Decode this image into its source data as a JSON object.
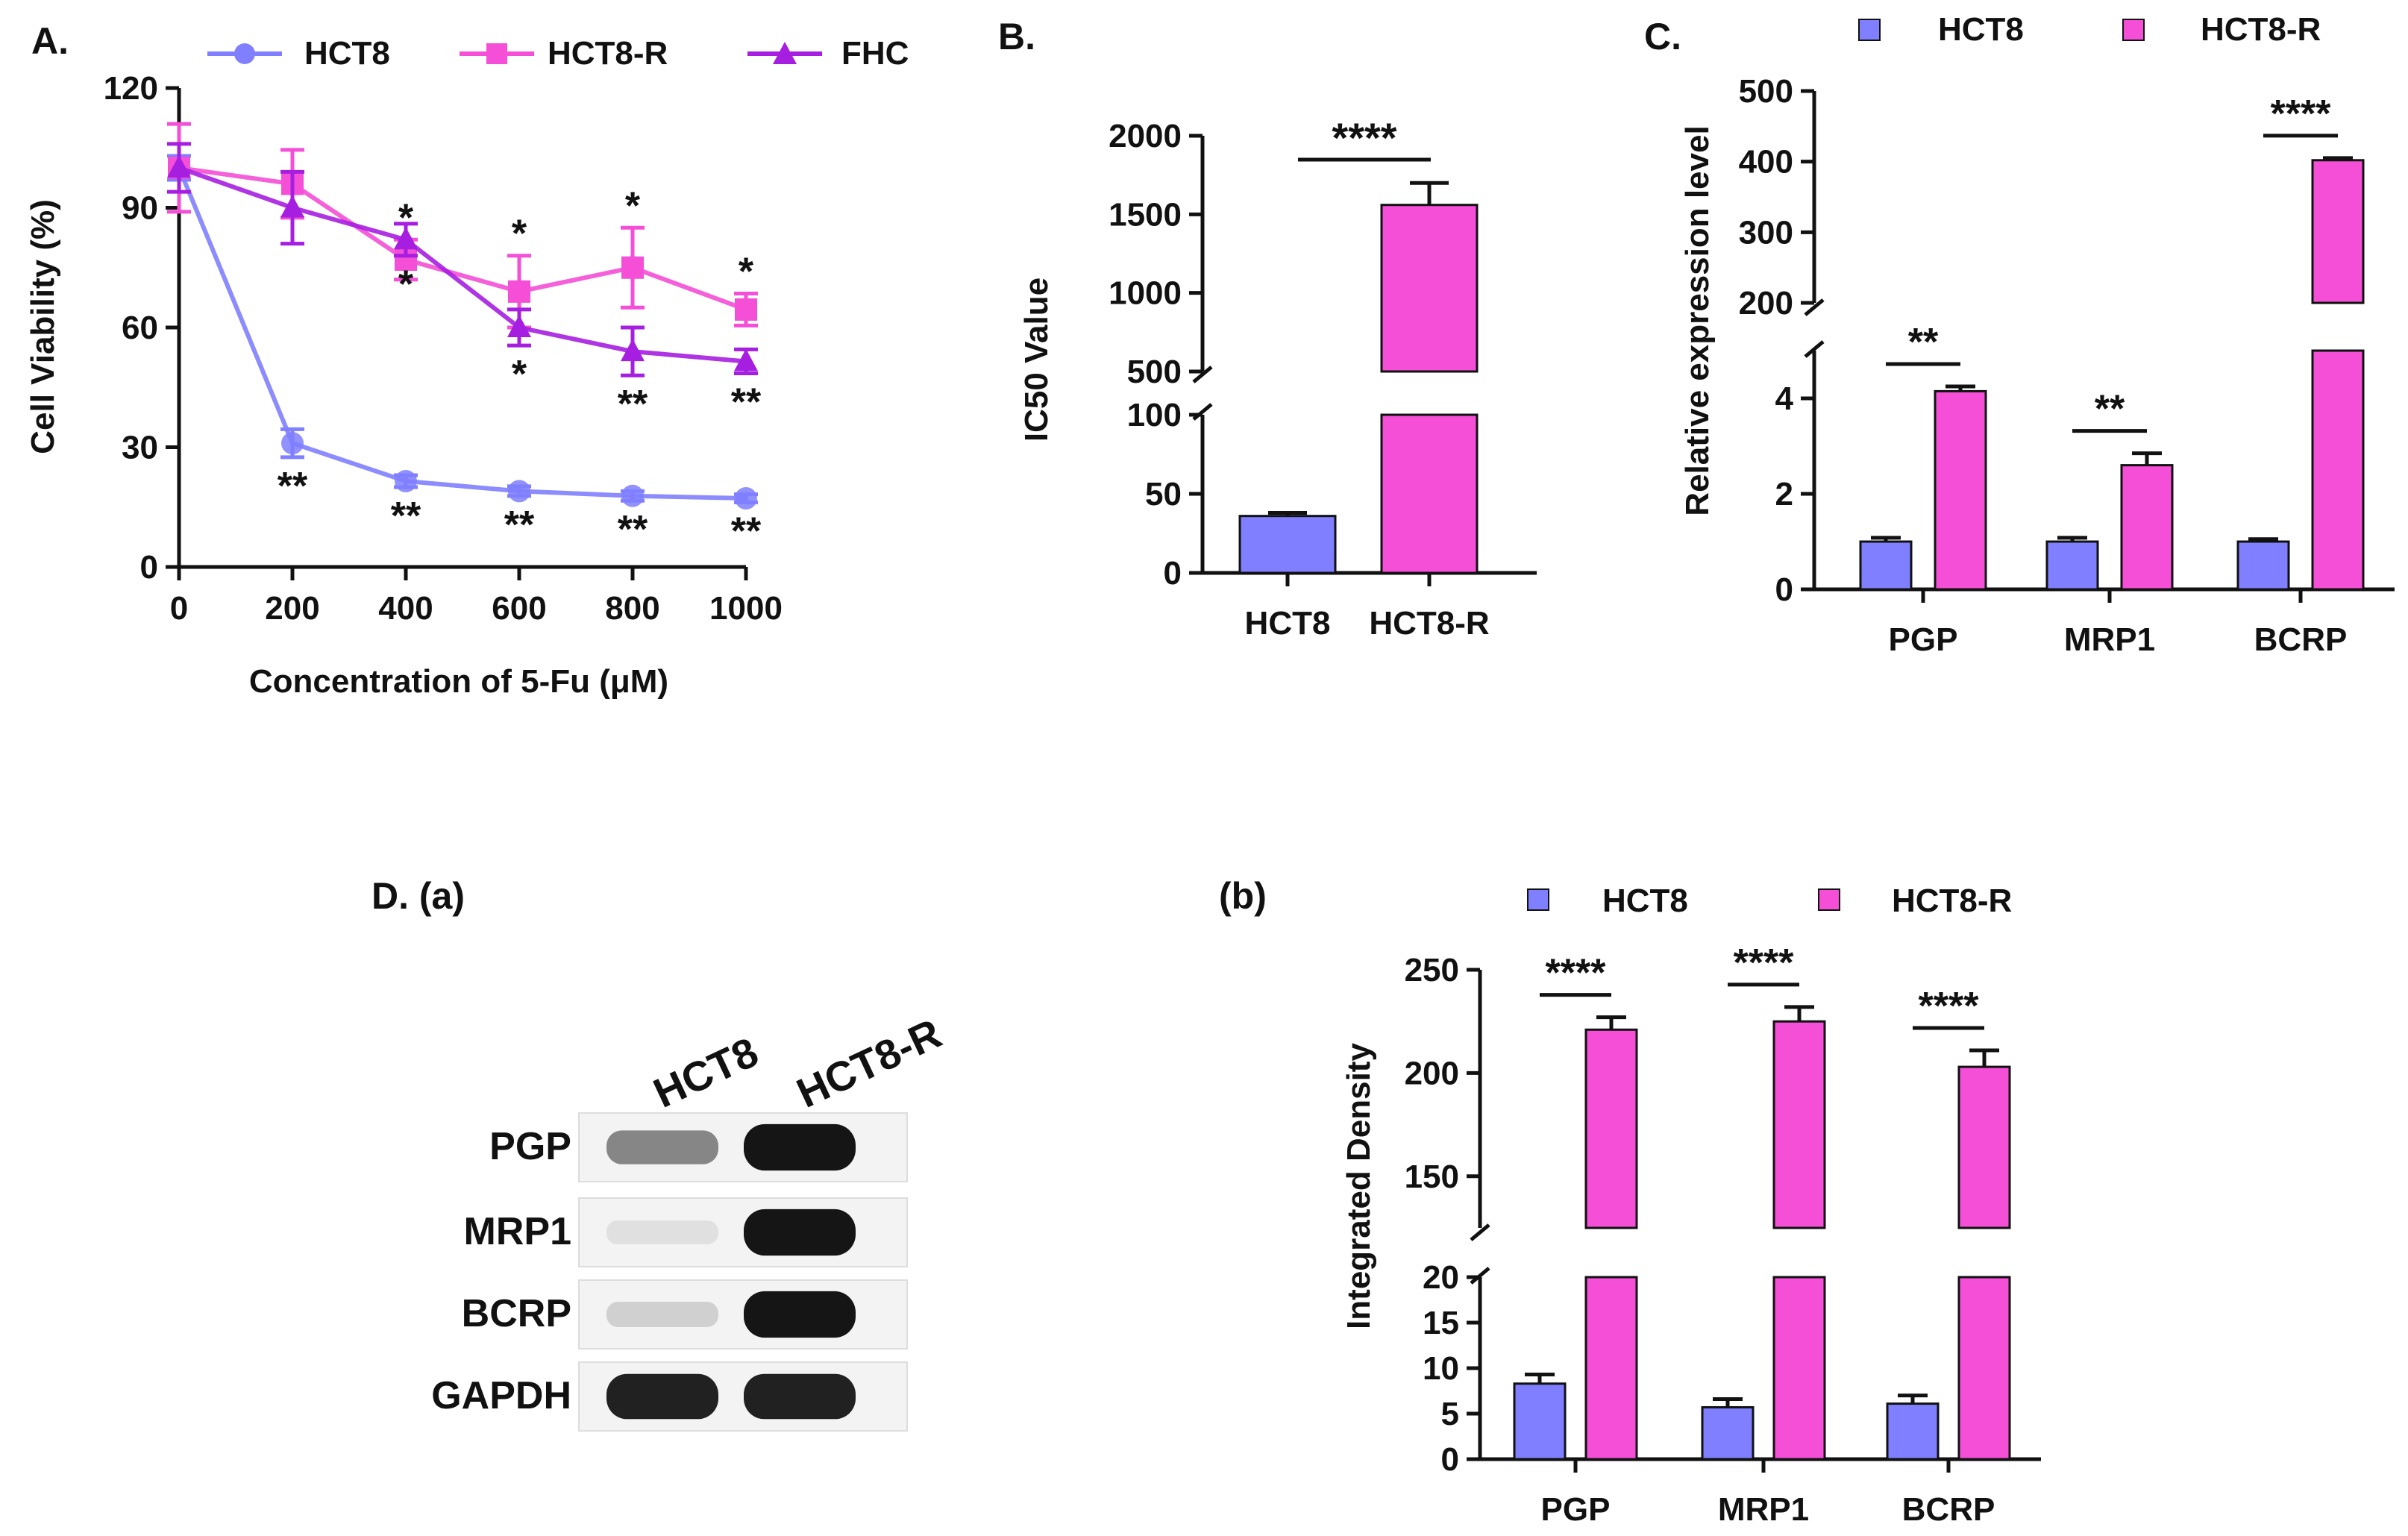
{
  "colors": {
    "HCT8": "#7f7fff",
    "HCT8-R": "#f44fd6",
    "FHC": "#a61ee0",
    "axis": "#111111"
  },
  "panelA": {
    "label": "A.",
    "xlabel": "Concentration of 5-Fu (μM)",
    "ylabel": "Cell Viability (%)",
    "legend": [
      "HCT8",
      "HCT8-R",
      "FHC"
    ]
  },
  "panelB": {
    "label": "B.",
    "ylabel": "IC50 Value",
    "sig": "****"
  },
  "panelC": {
    "label": "C.",
    "ylabel": "Relative expression level",
    "legend": [
      "HCT8",
      "HCT8-R"
    ]
  },
  "panelD": {
    "label": "D. (a)",
    "lanes": [
      "HCT8",
      "HCT8-R"
    ],
    "rows": [
      "PGP",
      "MRP1",
      "BCRP",
      "GAPDH"
    ],
    "band_intensity": {
      "HCT8": [
        0.45,
        0.05,
        0.12,
        0.9
      ],
      "HCT8-R": [
        0.95,
        0.95,
        0.95,
        0.9
      ]
    }
  },
  "panelDb": {
    "label": "(b)",
    "ylabel": "Integrated Density",
    "legend": [
      "HCT8",
      "HCT8-R"
    ]
  },
  "chart_data": [
    {
      "id": "A",
      "type": "line",
      "x": [
        0,
        200,
        400,
        600,
        800,
        1000
      ],
      "xticks": [
        "0",
        "200",
        "400",
        "600",
        "800",
        "1000"
      ],
      "xlim": [
        0,
        1000
      ],
      "ylim": [
        0,
        120
      ],
      "yticks": [
        "0",
        "30",
        "60",
        "90",
        "120"
      ],
      "xlabel": "Concentration of 5-Fu (μM)",
      "ylabel": "Cell Viability (%)",
      "legend_position": "top",
      "series": [
        {
          "name": "HCT8",
          "marker": "circle",
          "values": [
            100,
            31,
            21.5,
            19,
            17.8,
            17.2
          ],
          "errors": [
            3,
            3.5,
            1.5,
            1.2,
            1.2,
            1
          ],
          "sig": [
            "",
            "**",
            "**",
            "**",
            "**",
            "**"
          ],
          "sig_pos": "below"
        },
        {
          "name": "HCT8-R",
          "marker": "square",
          "values": [
            100,
            96,
            77,
            69,
            75,
            64.5
          ],
          "errors": [
            11,
            8.5,
            5,
            9,
            10,
            4
          ],
          "sig": [
            "",
            "",
            "*",
            "*",
            "*",
            "*"
          ],
          "sig_pos": "above"
        },
        {
          "name": "FHC",
          "marker": "triangle",
          "values": [
            100,
            90,
            82,
            60,
            54,
            51.5
          ],
          "errors": [
            6,
            9,
            4,
            4.5,
            6,
            3
          ],
          "sig": [
            "",
            "",
            "*",
            "*",
            "**",
            "**"
          ],
          "sig_pos": "below"
        }
      ]
    },
    {
      "id": "B",
      "type": "bar",
      "categories": [
        "HCT8",
        "HCT8-R"
      ],
      "values": [
        36,
        1560
      ],
      "errors": [
        2,
        140
      ],
      "ylabel": "IC50 Value",
      "ylim": [
        0,
        2000
      ],
      "axis_break": [
        100,
        500
      ],
      "yticks_low": [
        "0",
        "50",
        "100"
      ],
      "yticks_high": [
        "500",
        "1000",
        "1500",
        "2000"
      ],
      "annotations": [
        {
          "text": "****",
          "between": [
            "HCT8",
            "HCT8-R"
          ]
        }
      ]
    },
    {
      "id": "C",
      "type": "bar",
      "categories": [
        "PGP",
        "MRP1",
        "BCRP"
      ],
      "ylabel": "Relative expression level",
      "ylim": [
        0,
        500
      ],
      "axis_break": [
        5,
        200
      ],
      "yticks_low": [
        "0",
        "2",
        "4"
      ],
      "yticks_high": [
        "200",
        "300",
        "400",
        "500"
      ],
      "legend_position": "top",
      "series": [
        {
          "name": "HCT8",
          "values": [
            1,
            1,
            1
          ],
          "errors": [
            0.08,
            0.08,
            0.05
          ]
        },
        {
          "name": "HCT8-R",
          "values": [
            4.15,
            2.6,
            402
          ],
          "errors": [
            0.1,
            0.25,
            3
          ]
        }
      ],
      "annotations": [
        "**",
        "**",
        "****"
      ]
    },
    {
      "id": "Db",
      "type": "bar",
      "categories": [
        "PGP",
        "MRP1",
        "BCRP"
      ],
      "ylabel": "Integrated Density",
      "ylim": [
        0,
        250
      ],
      "axis_break": [
        20,
        125
      ],
      "yticks_low": [
        "0",
        "5",
        "10",
        "15",
        "20"
      ],
      "yticks_high": [
        "150",
        "200",
        "250"
      ],
      "legend_position": "top",
      "series": [
        {
          "name": "HCT8",
          "values": [
            8.3,
            5.7,
            6.1
          ],
          "errors": [
            1,
            0.9,
            0.9
          ]
        },
        {
          "name": "HCT8-R",
          "values": [
            221,
            225,
            203
          ],
          "errors": [
            6,
            7,
            8
          ]
        }
      ],
      "annotations": [
        "****",
        "****",
        "****"
      ]
    }
  ]
}
